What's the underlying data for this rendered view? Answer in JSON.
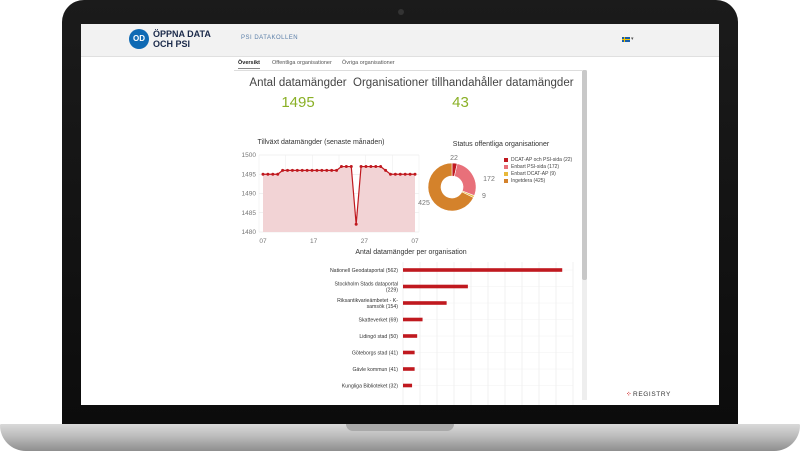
{
  "header": {
    "logo_badge": "OD",
    "logo_line1": "ÖPPNA DATA",
    "logo_line2": "OCH PSI",
    "nav_title": "PSI DATAKOLLEN"
  },
  "tabs": [
    "Översikt",
    "Offentliga organisationer",
    "Övriga organisationer"
  ],
  "stats": {
    "datasets_label": "Antal datamängder",
    "datasets_value": "1495",
    "orgs_label": "Organisationer tillhandahåller datamängder",
    "orgs_value": "43"
  },
  "growth_chart": {
    "title": "Tillväxt datamängder (senaste månaden)",
    "y_ticks": [
      "1500",
      "1495",
      "1490",
      "1485",
      "1480"
    ],
    "x_ticks": [
      "07",
      "17",
      "27",
      "07"
    ],
    "ylim": [
      1480,
      1500
    ],
    "values": [
      1495,
      1495,
      1495,
      1495,
      1496,
      1496,
      1496,
      1496,
      1496,
      1496,
      1496,
      1496,
      1496,
      1496,
      1496,
      1496,
      1497,
      1497,
      1497,
      1482,
      1497,
      1497,
      1497,
      1497,
      1497,
      1496,
      1495,
      1495,
      1495,
      1495,
      1495,
      1495
    ]
  },
  "status_chart": {
    "title": "Status offentliga organisationer",
    "slices": [
      {
        "label": "DCAT-AP och PSI-sida (22)",
        "value": 22,
        "color": "#c0191f"
      },
      {
        "label": "Enbart PSI-sida (172)",
        "value": 172,
        "color": "#e8707a"
      },
      {
        "label": "Enbart DCAT-AP (9)",
        "value": 9,
        "color": "#e8b93c"
      },
      {
        "label": "Ingetdera (425)",
        "value": 425,
        "color": "#d4822b"
      }
    ],
    "value_labels": [
      "22",
      "172",
      "9",
      "425"
    ]
  },
  "bar_chart": {
    "title": "Antal datamängder per organisation",
    "categories": [
      [
        "Nationell Geodataportal (562)"
      ],
      [
        "Stockholm Stads dataportal",
        "(229)"
      ],
      [
        "Riksantikvarieämbetet - K-",
        "samsök (154)"
      ],
      [
        "Skatteverket (69)"
      ],
      [
        "Lidingö stad (50)"
      ],
      [
        "Göteborgs stad (41)"
      ],
      [
        "Gävle kommun (41)"
      ],
      [
        "Kungliga Biblioteket (32)"
      ]
    ],
    "values": [
      562,
      229,
      154,
      69,
      50,
      41,
      41,
      32
    ],
    "xlim": [
      0,
      600
    ],
    "color": "#c0191f"
  },
  "chart_data": [
    {
      "type": "line",
      "title": "Tillväxt datamängder (senaste månaden)",
      "x_ticks": [
        "07",
        "17",
        "27",
        "07"
      ],
      "ylim": [
        1480,
        1500
      ],
      "series": [
        {
          "values": [
            1495,
            1495,
            1495,
            1495,
            1496,
            1496,
            1496,
            1496,
            1496,
            1496,
            1496,
            1496,
            1496,
            1496,
            1496,
            1496,
            1497,
            1497,
            1497,
            1482,
            1497,
            1497,
            1497,
            1497,
            1497,
            1496,
            1495,
            1495,
            1495,
            1495,
            1495,
            1495
          ]
        }
      ]
    },
    {
      "type": "pie",
      "title": "Status offentliga organisationer",
      "labels": [
        "DCAT-AP och PSI-sida (22)",
        "Enbart PSI-sida (172)",
        "Enbart DCAT-AP (9)",
        "Ingetdera (425)"
      ],
      "values": [
        22,
        172,
        9,
        425
      ]
    },
    {
      "type": "bar",
      "title": "Antal datamängder per organisation",
      "categories": [
        "Nationell Geodataportal (562)",
        "Stockholm Stads dataportal (229)",
        "Riksantikvarieämbetet - K-samsök (154)",
        "Skatteverket (69)",
        "Lidingö stad (50)",
        "Göteborgs stad (41)",
        "Gävle kommun (41)",
        "Kungliga Biblioteket (32)"
      ],
      "values": [
        562,
        229,
        154,
        69,
        50,
        41,
        41,
        32
      ],
      "xlim": [
        0,
        600
      ]
    }
  ],
  "footer": {
    "registry_label": "REGISTRY"
  }
}
